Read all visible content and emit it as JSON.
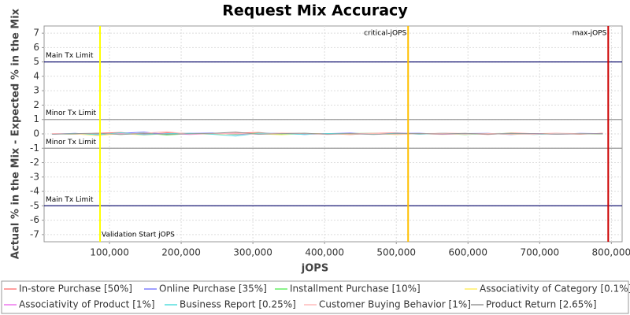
{
  "chart_data": {
    "type": "line",
    "title": "Request Mix Accuracy",
    "x_label": "jOPS",
    "y_label": "Actual % in the Mix - Expected % in the Mix",
    "x": [
      20000,
      52000,
      84000,
      116000,
      148000,
      180000,
      212000,
      244000,
      276000,
      308000,
      340000,
      372000,
      404000,
      436000,
      468000,
      500000,
      532000,
      564000,
      596000,
      628000,
      660000,
      692000,
      724000,
      756000,
      788000
    ],
    "series": [
      {
        "name": "In-store Purchase [50%]",
        "color": "#ff8080",
        "values": [
          0.02,
          -0.03,
          0.05,
          0.1,
          -0.05,
          0.08,
          0.03,
          -0.02,
          0.06,
          0.1,
          -0.04,
          0.03,
          0.02,
          -0.05,
          0.04,
          0.07,
          -0.02,
          0.05,
          0.03,
          -0.04,
          0.06,
          0.02,
          0.04,
          -0.03,
          0.05
        ]
      },
      {
        "name": "Online Purchase [35%]",
        "color": "#8080ff",
        "values": [
          -0.02,
          0.04,
          -0.06,
          0.05,
          0.12,
          -0.03,
          0.04,
          0.06,
          -0.05,
          0.03,
          0.05,
          -0.04,
          0.02,
          0.06,
          -0.03,
          0.04,
          0.05,
          -0.02,
          0.03,
          0.04,
          -0.05,
          0.03,
          -0.02,
          0.04,
          0.02
        ]
      },
      {
        "name": "Installment Purchase [10%]",
        "color": "#66ee66",
        "values": [
          0.01,
          -0.02,
          0.03,
          -0.04,
          0.06,
          -0.08,
          0.02,
          0.03,
          -0.02,
          0.05,
          -0.03,
          0.04,
          -0.02,
          0.03,
          0.05,
          -0.04,
          0.02,
          0.03,
          -0.05,
          0.02,
          0.04,
          -0.02,
          0.03,
          0.01,
          -0.02
        ]
      },
      {
        "name": "Associativity of Category [0.1%]",
        "color": "#ffee66",
        "values": [
          0,
          0.01,
          -0.12,
          0.03,
          -0.08,
          0.02,
          0.01,
          -0.03,
          0.02,
          0.01,
          -0.06,
          0.02,
          0.01,
          -0.02,
          0.03,
          -0.05,
          0.02,
          -0.04,
          0.01,
          0.02,
          -0.03,
          0.01,
          0.02,
          -0.01,
          0.01
        ]
      },
      {
        "name": "Associativity of Product [1%]",
        "color": "#ee77ee",
        "values": [
          0.01,
          0.02,
          -0.03,
          0.05,
          -0.02,
          0.03,
          -0.04,
          0.02,
          0.03,
          -0.02,
          0.04,
          -0.03,
          0.02,
          0.01,
          -0.02,
          0.03,
          0.02,
          -0.03,
          0.01,
          0.02,
          -0.01,
          0.03,
          -0.02,
          0.01,
          0.02
        ]
      },
      {
        "name": "Business Report [0.25%]",
        "color": "#55dddd",
        "values": [
          -0.01,
          0.03,
          -0.05,
          0.08,
          -0.06,
          0.02,
          0.04,
          -0.03,
          -0.15,
          0.05,
          0.02,
          -0.04,
          0.03,
          0.02,
          -0.03,
          0.04,
          -0.02,
          0.05,
          -0.03,
          0.02,
          0.03,
          -0.04,
          0.02,
          0.03,
          -0.02
        ]
      },
      {
        "name": "Customer Buying Behavior [1%]",
        "color": "#ffbbbb",
        "values": [
          0.03,
          -0.01,
          0.04,
          -0.03,
          0.05,
          0.15,
          -0.02,
          0.03,
          0.04,
          -0.02,
          0.06,
          0.03,
          -0.04,
          0.02,
          0.05,
          -0.03,
          0.02,
          0.04,
          -0.02,
          0.03,
          0.01,
          -0.03,
          0.05,
          0.02,
          -0.01
        ]
      },
      {
        "name": "Product Return [2.65%]",
        "color": "#999999",
        "values": [
          -0.03,
          0.02,
          0.05,
          -0.04,
          0.03,
          -0.02,
          0.01,
          0.04,
          0.12,
          -0.03,
          0.02,
          0.05,
          -0.02,
          0.03,
          -0.04,
          0.02,
          0.03,
          -0.01,
          0.04,
          -0.02,
          0.03,
          0.02,
          -0.03,
          0.01,
          0.02
        ]
      }
    ],
    "h_lines": [
      {
        "value": 5,
        "label": "Main Tx Limit",
        "color": "#000066"
      },
      {
        "value": 1,
        "label": "Minor Tx Limit",
        "color": "#999999"
      },
      {
        "value": -1,
        "label": "Minor Tx Limit",
        "color": "#999999"
      },
      {
        "value": -5,
        "label": "Main Tx Limit",
        "color": "#000066"
      }
    ],
    "v_lines": [
      {
        "value": 86800,
        "label": "Validation Start jOPS",
        "color": "#ffff00",
        "label_side": "right-bottom"
      },
      {
        "value": 516500,
        "label": "critical-jOPS",
        "color": "#ffc000",
        "label_side": "left-top"
      },
      {
        "value": 795600,
        "label": "max-jOPS",
        "color": "#cc0000",
        "label_side": "left-top"
      }
    ],
    "xlim": [
      8800,
      815000
    ],
    "ylim": [
      -7.5,
      7.5
    ],
    "xticks": [
      {
        "value": 100000,
        "label": "100,000"
      },
      {
        "value": 200000,
        "label": "200,000"
      },
      {
        "value": 300000,
        "label": "300,000"
      },
      {
        "value": 400000,
        "label": "400,000"
      },
      {
        "value": 500000,
        "label": "500,000"
      },
      {
        "value": 600000,
        "label": "600,000"
      },
      {
        "value": 700000,
        "label": "700,000"
      },
      {
        "value": 800000,
        "label": "800,000"
      }
    ],
    "yticks": [
      -7,
      -6,
      -5,
      -4,
      -3,
      -2,
      -1,
      0,
      1,
      2,
      3,
      4,
      5,
      6,
      7
    ],
    "grid": true
  }
}
